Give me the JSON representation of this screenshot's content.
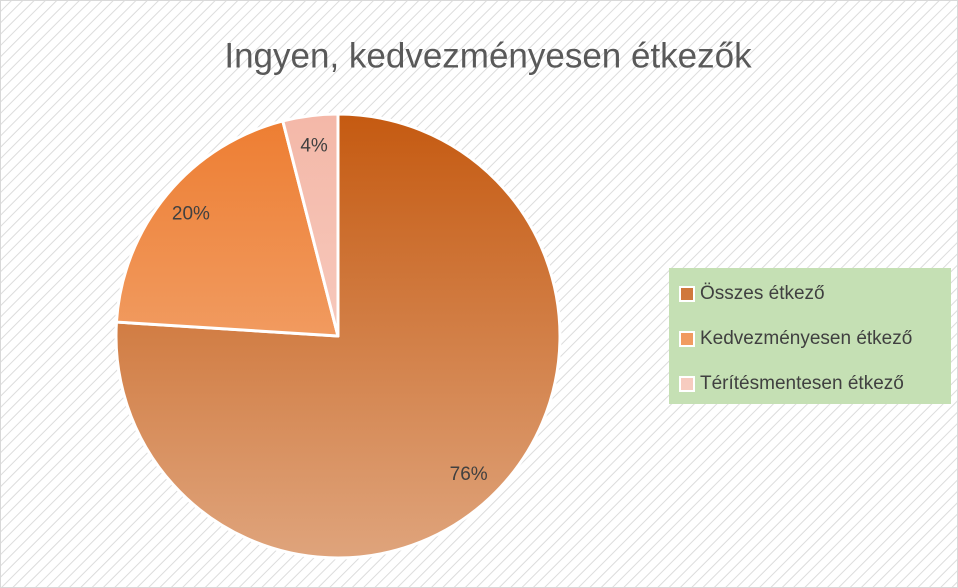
{
  "chart_data": {
    "type": "pie",
    "title": "Ingyen, kedvezményesen étkezők",
    "categories": [
      "Összes étkező",
      "Kedvezményesen étkező",
      "Térítésmentesen étkező"
    ],
    "values": [
      76,
      20,
      4
    ],
    "value_labels": [
      "76%",
      "20%",
      "4%"
    ],
    "colors": [
      "#c55a11",
      "#ed7d31",
      "#f4b8a8"
    ],
    "legend": "right"
  }
}
